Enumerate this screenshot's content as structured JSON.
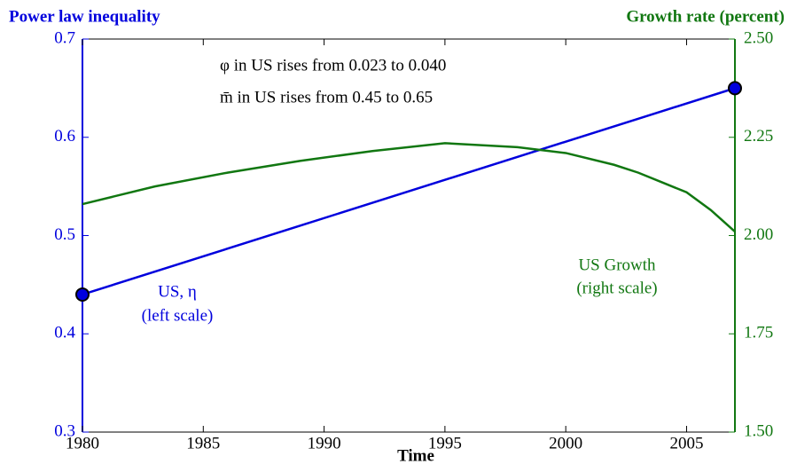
{
  "chart_data": {
    "type": "line",
    "y_label": "Power law inequality",
    "y2_label": "Growth rate (percent)",
    "x_label": "Time",
    "annotations": [
      "φ in US rises from 0.023 to 0.040",
      "m̄ in US rises from 0.45 to 0.65",
      "US, η",
      "(left scale)",
      "US Growth",
      "(right scale)"
    ],
    "xlim": [
      1980,
      2007
    ],
    "xticks": [
      1980,
      1985,
      1990,
      1995,
      2000,
      2005
    ],
    "ylim": [
      0.3,
      0.7
    ],
    "yticks": [
      0.3,
      0.4,
      0.5,
      0.6,
      0.7
    ],
    "y2lim": [
      1.5,
      2.5
    ],
    "y2ticks": [
      {
        "value": 1.5,
        "label": "1.50"
      },
      {
        "value": 1.75,
        "label": "1.75"
      },
      {
        "value": 2.0,
        "label": "2.00"
      },
      {
        "value": 2.25,
        "label": "2.25"
      },
      {
        "value": 2.5,
        "label": "2.50"
      }
    ],
    "series": [
      {
        "name": "US, η",
        "color": "#0000dd",
        "x": [
          1980,
          2007
        ],
        "values": [
          0.44,
          0.65
        ],
        "markers": true
      },
      {
        "name": "US Growth",
        "color": "#117711",
        "axis": "y2",
        "x": [
          1980,
          1983,
          1986,
          1989,
          1992,
          1995,
          1998,
          2000,
          2002,
          2003,
          2004,
          2005,
          2006,
          2007
        ],
        "values": [
          2.08,
          2.125,
          2.16,
          2.19,
          2.215,
          2.235,
          2.225,
          2.21,
          2.18,
          2.16,
          2.135,
          2.11,
          2.065,
          2.01
        ]
      }
    ]
  }
}
